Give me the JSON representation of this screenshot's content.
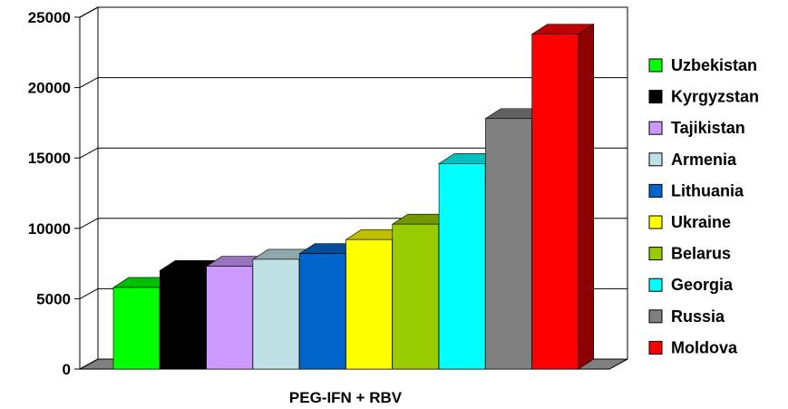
{
  "chart_data": {
    "type": "bar",
    "style": "3d-column",
    "categories": [
      "PEG-IFN + RBV"
    ],
    "xlabel": "PEG-IFN + RBV",
    "ylabel": "",
    "ylim": [
      0,
      25000
    ],
    "yticks": [
      0,
      5000,
      10000,
      15000,
      20000,
      25000
    ],
    "grid": true,
    "legend_position": "right",
    "series": [
      {
        "name": "Uzbekistan",
        "value": 5800,
        "color": "#00ff00"
      },
      {
        "name": "Kyrgyzstan",
        "value": 7000,
        "color": "#000000"
      },
      {
        "name": "Tajikistan",
        "value": 7300,
        "color": "#cc99ff"
      },
      {
        "name": "Armenia",
        "value": 7800,
        "color": "#bfe0e4"
      },
      {
        "name": "Lithuania",
        "value": 8200,
        "color": "#0066cc"
      },
      {
        "name": "Ukraine",
        "value": 9200,
        "color": "#ffff00"
      },
      {
        "name": "Belarus",
        "value": 10300,
        "color": "#99cc00"
      },
      {
        "name": "Georgia",
        "value": 14600,
        "color": "#00ffff"
      },
      {
        "name": "Russia",
        "value": 17800,
        "color": "#808080"
      },
      {
        "name": "Moldova",
        "value": 23800,
        "color": "#ff0000"
      }
    ]
  }
}
